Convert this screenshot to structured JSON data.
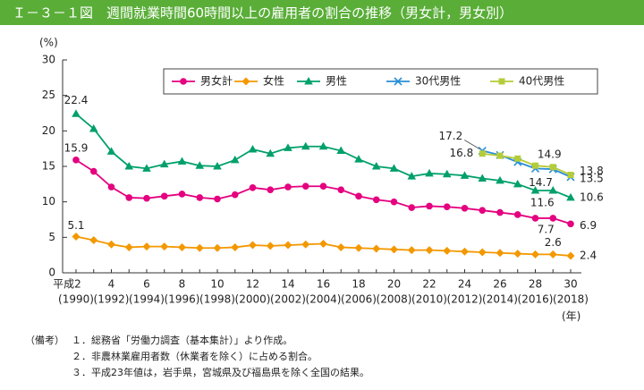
{
  "title": "Ｉ－３－１図　週間就業時間60時間以上の雇用者の割合の推移（男女計，男女別）",
  "chart_data": {
    "type": "line",
    "y_unit": "(%)",
    "x_unit": "(年)",
    "categories": [
      "平成2",
      null,
      "4",
      null,
      "6",
      null,
      "8",
      null,
      "10",
      null,
      "12",
      null,
      "14",
      null,
      "16",
      null,
      "18",
      null,
      "20",
      null,
      "22",
      null,
      "24",
      null,
      "26",
      null,
      "28",
      null,
      "30"
    ],
    "year_labels": [
      "(1990)",
      null,
      "(1992)",
      null,
      "(1994)",
      null,
      "(1996)",
      null,
      "(1998)",
      null,
      "(2000)",
      null,
      "(2002)",
      null,
      "(2004)",
      null,
      "(2006)",
      null,
      "(2008)",
      null,
      "(2010)",
      null,
      "(2012)",
      null,
      "(2014)",
      null,
      "(2016)",
      null,
      "(2018)"
    ],
    "ylim": [
      0,
      30
    ],
    "yticks": [
      0,
      5,
      10,
      15,
      20,
      25,
      30
    ],
    "series": [
      {
        "name": "男女計",
        "color": "#e4007f",
        "marker": "circle",
        "values": [
          15.9,
          14.3,
          12.1,
          10.6,
          10.5,
          10.8,
          11.1,
          10.6,
          10.4,
          11.0,
          12.0,
          11.7,
          12.1,
          12.2,
          12.2,
          11.7,
          10.8,
          10.3,
          10.0,
          9.2,
          9.4,
          9.3,
          9.1,
          8.8,
          8.5,
          8.2,
          7.7,
          7.7,
          6.9
        ],
        "value_labels": [
          "15.9",
          null,
          null,
          null,
          null,
          null,
          null,
          null,
          null,
          null,
          null,
          null,
          null,
          null,
          null,
          null,
          null,
          null,
          null,
          null,
          null,
          null,
          null,
          null,
          null,
          null,
          null,
          "7.7",
          "6.9"
        ]
      },
      {
        "name": "女性",
        "color": "#f39800",
        "marker": "diamond",
        "values": [
          5.1,
          4.6,
          4.0,
          3.6,
          3.7,
          3.7,
          3.6,
          3.5,
          3.5,
          3.6,
          3.9,
          3.8,
          3.9,
          4.0,
          4.1,
          3.6,
          3.5,
          3.4,
          3.3,
          3.2,
          3.2,
          3.1,
          3.0,
          2.9,
          2.8,
          2.7,
          2.6,
          2.6,
          2.4
        ],
        "value_labels": [
          "5.1",
          null,
          null,
          null,
          null,
          null,
          null,
          null,
          null,
          null,
          null,
          null,
          null,
          null,
          null,
          null,
          null,
          null,
          null,
          null,
          null,
          null,
          null,
          null,
          null,
          null,
          null,
          "2.6",
          "2.4"
        ]
      },
      {
        "name": "男性",
        "color": "#00a06a",
        "marker": "triangle",
        "values": [
          22.4,
          20.3,
          17.1,
          15.0,
          14.7,
          15.3,
          15.7,
          15.1,
          15.0,
          15.9,
          17.4,
          16.8,
          17.6,
          17.8,
          17.8,
          17.2,
          16.0,
          15.0,
          14.7,
          13.6,
          14.0,
          13.9,
          13.7,
          13.3,
          13.0,
          12.5,
          11.6,
          11.6,
          10.6
        ],
        "value_labels": [
          "22.4",
          null,
          null,
          null,
          null,
          null,
          null,
          null,
          null,
          null,
          null,
          null,
          null,
          null,
          null,
          null,
          null,
          null,
          null,
          null,
          null,
          null,
          null,
          null,
          null,
          null,
          null,
          "11.6",
          "10.6"
        ]
      },
      {
        "name": "30代男性",
        "color": "#2a8fd6",
        "marker": "x",
        "values": [
          null,
          null,
          null,
          null,
          null,
          null,
          null,
          null,
          null,
          null,
          null,
          null,
          null,
          null,
          null,
          null,
          null,
          null,
          null,
          null,
          null,
          null,
          null,
          17.2,
          16.6,
          15.6,
          14.7,
          14.6,
          13.5
        ],
        "value_labels": [
          null,
          null,
          null,
          null,
          null,
          null,
          null,
          null,
          null,
          null,
          null,
          null,
          null,
          null,
          null,
          null,
          null,
          null,
          null,
          null,
          null,
          null,
          null,
          "17.2",
          null,
          null,
          "14.7",
          null,
          "13.5"
        ]
      },
      {
        "name": "40代男性",
        "color": "#b5cc3a",
        "marker": "square",
        "values": [
          null,
          null,
          null,
          null,
          null,
          null,
          null,
          null,
          null,
          null,
          null,
          null,
          null,
          null,
          null,
          null,
          null,
          null,
          null,
          null,
          null,
          null,
          null,
          16.8,
          16.5,
          16.1,
          15.1,
          14.9,
          13.8
        ],
        "value_labels": [
          null,
          null,
          null,
          null,
          null,
          null,
          null,
          null,
          null,
          null,
          null,
          null,
          null,
          null,
          null,
          null,
          null,
          null,
          null,
          null,
          null,
          null,
          null,
          "16.8",
          null,
          null,
          null,
          "14.9",
          "13.8"
        ]
      }
    ]
  },
  "notes": {
    "label": "（備考）",
    "items": [
      "１．総務省「労働力調査（基本集計）」より作成。",
      "２．非農林業雇用者数（休業者を除く）に占める割合。",
      "３．平成23年値は，岩手県，宮城県及び福島県を除く全国の結果。"
    ]
  }
}
